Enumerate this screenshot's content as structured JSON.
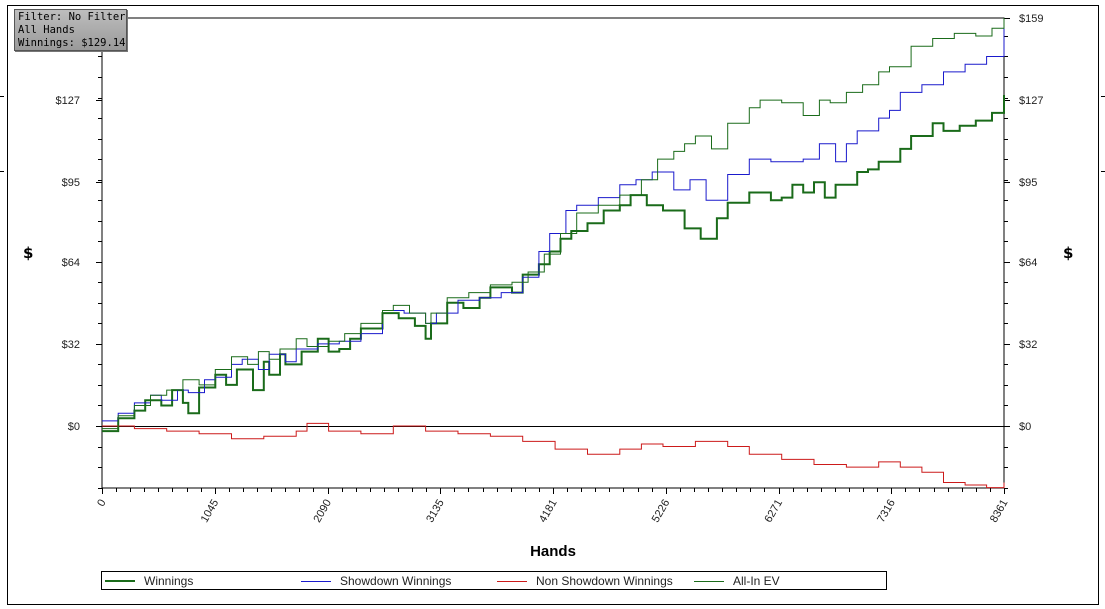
{
  "filter_box": {
    "line1": "Filter: No Filter",
    "line2": "All Hands",
    "line3": "Winnings: $129.14"
  },
  "chart_data": {
    "type": "line",
    "xlabel": "Hands",
    "ylabel": "$",
    "x_ticks": [
      0,
      1045,
      2090,
      3135,
      4181,
      5226,
      6271,
      7316,
      8361
    ],
    "xlim": [
      0,
      8361
    ],
    "y_ticks": [
      0,
      32,
      64,
      95,
      127,
      159
    ],
    "y_tick_labels": [
      "$0",
      "$32",
      "$64",
      "$95",
      "$127",
      "$159"
    ],
    "ylim": [
      -24,
      159
    ],
    "grid": true,
    "legend_position": "bottom",
    "series": [
      {
        "name": "Winnings",
        "color": "#1a6b1a",
        "x": [
          0,
          150,
          300,
          400,
          550,
          650,
          750,
          800,
          900,
          1050,
          1150,
          1250,
          1400,
          1500,
          1550,
          1650,
          1700,
          1850,
          2000,
          2100,
          2200,
          2300,
          2400,
          2600,
          2750,
          2900,
          3000,
          3050,
          3200,
          3350,
          3500,
          3600,
          3800,
          3900,
          4050,
          4150,
          4250,
          4350,
          4500,
          4650,
          4800,
          4900,
          5050,
          5200,
          5400,
          5550,
          5700,
          5800,
          6000,
          6200,
          6300,
          6400,
          6500,
          6600,
          6700,
          6800,
          7000,
          7100,
          7200,
          7400,
          7500,
          7700,
          7800,
          7950,
          8100,
          8250,
          8361
        ],
        "values": [
          -2,
          3,
          6,
          10,
          8,
          14,
          9,
          5,
          15,
          20,
          16,
          22,
          14,
          25,
          20,
          28,
          24,
          29,
          34,
          29,
          30,
          34,
          38,
          44,
          42,
          39,
          34,
          40,
          48,
          46,
          50,
          54,
          52,
          59,
          63,
          68,
          73,
          76,
          79,
          84,
          86,
          90,
          86,
          84,
          77,
          73,
          81,
          87,
          91,
          88,
          89,
          94,
          91,
          95,
          89,
          94,
          99,
          100,
          103,
          108,
          113,
          118,
          115,
          117,
          119,
          122,
          129
        ]
      },
      {
        "name": "Showdown Winnings",
        "color": "#1a1acc",
        "x": [
          0,
          150,
          300,
          450,
          550,
          700,
          800,
          950,
          1050,
          1200,
          1300,
          1450,
          1550,
          1700,
          1800,
          2000,
          2200,
          2400,
          2600,
          2800,
          3000,
          3100,
          3300,
          3500,
          3700,
          3900,
          4050,
          4150,
          4300,
          4400,
          4600,
          4800,
          4950,
          5100,
          5300,
          5450,
          5600,
          5800,
          6000,
          6200,
          6400,
          6500,
          6650,
          6800,
          6900,
          7000,
          7200,
          7300,
          7400,
          7600,
          7800,
          8000,
          8200,
          8361
        ],
        "values": [
          2,
          5,
          9,
          12,
          10,
          14,
          13,
          18,
          19,
          24,
          26,
          22,
          28,
          25,
          30,
          32,
          33,
          36,
          45,
          44,
          40,
          44,
          49,
          50,
          52,
          58,
          68,
          75,
          84,
          86,
          89,
          94,
          96,
          99,
          92,
          96,
          88,
          98,
          104,
          103,
          103,
          104,
          110,
          103,
          110,
          115,
          120,
          123,
          130,
          133,
          138,
          141,
          144,
          156
        ]
      },
      {
        "name": "Non Showdown Winnings",
        "color": "#cc1a1a",
        "x": [
          0,
          300,
          600,
          900,
          1200,
          1500,
          1800,
          1900,
          2100,
          2400,
          2700,
          3000,
          3300,
          3600,
          3900,
          4200,
          4500,
          4800,
          5000,
          5200,
          5500,
          5800,
          6000,
          6300,
          6600,
          6900,
          7200,
          7400,
          7600,
          7800,
          8000,
          8200,
          8361
        ],
        "values": [
          0,
          -1,
          -2,
          -3,
          -5,
          -4,
          -2,
          1,
          -2,
          -3,
          0,
          -2,
          -3,
          -4,
          -6,
          -9,
          -11,
          -9,
          -7,
          -8,
          -6,
          -8,
          -11,
          -13,
          -15,
          -16,
          -14,
          -16,
          -18,
          -22,
          -23,
          -24,
          -22
        ]
      },
      {
        "name": "All-In EV",
        "color": "#1a6b1a",
        "x": [
          0,
          150,
          300,
          450,
          600,
          750,
          900,
          1050,
          1200,
          1350,
          1450,
          1550,
          1650,
          1800,
          1900,
          2100,
          2250,
          2400,
          2600,
          2700,
          2850,
          3000,
          3050,
          3200,
          3400,
          3600,
          3800,
          3950,
          4100,
          4250,
          4400,
          4600,
          4800,
          5000,
          5150,
          5300,
          5400,
          5500,
          5650,
          5800,
          6000,
          6100,
          6300,
          6500,
          6650,
          6750,
          6900,
          7050,
          7200,
          7300,
          7500,
          7700,
          7900,
          8100,
          8250,
          8361
        ],
        "values": [
          -1,
          4,
          8,
          12,
          14,
          18,
          16,
          22,
          27,
          24,
          29,
          26,
          30,
          34,
          31,
          33,
          36,
          40,
          45,
          47,
          44,
          40,
          44,
          50,
          52,
          55,
          56,
          60,
          67,
          75,
          83,
          86,
          90,
          96,
          104,
          107,
          110,
          113,
          108,
          118,
          124,
          127,
          126,
          121,
          127,
          126,
          130,
          133,
          138,
          140,
          148,
          151,
          153,
          152,
          155,
          159
        ]
      }
    ]
  },
  "right_y_labels": [
    "$159",
    "$127",
    "$95",
    "$64",
    "$32",
    "$0"
  ]
}
